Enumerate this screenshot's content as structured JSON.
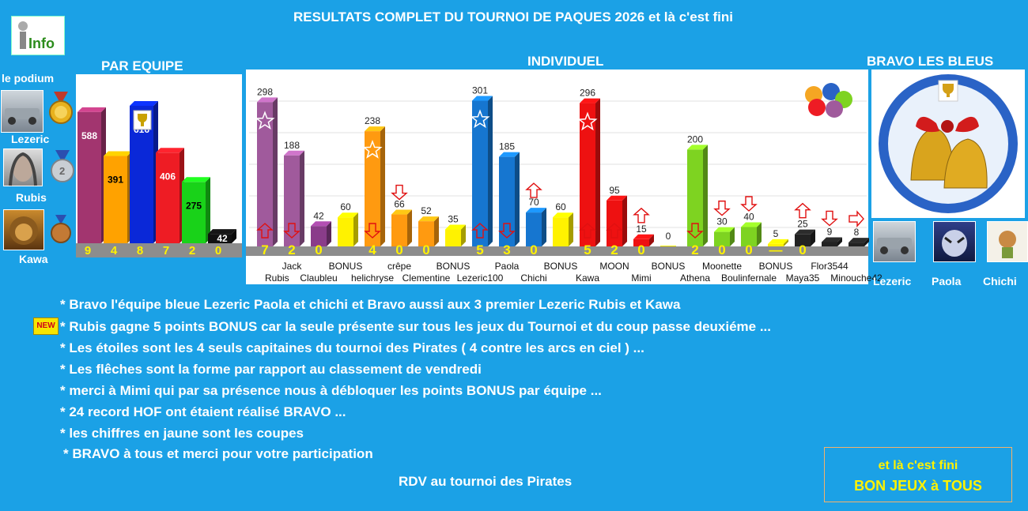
{
  "page": {
    "title": "RESULTATS COMPLET DU TOURNOI DE PAQUES 2026 et là c'est fini",
    "info_label": "Info",
    "sections": {
      "team": "PAR EQUIPE",
      "individual": "INDIVIDUEL",
      "winners": "BRAVO LES BLEUS"
    },
    "podium_label": "le podium",
    "podium": [
      {
        "name": "Lezeric",
        "medal": "gold-medal"
      },
      {
        "name": "Rubis",
        "medal": "silver-medal"
      },
      {
        "name": "Kawa",
        "medal": "bronze-medal"
      }
    ],
    "winners": [
      "Lezeric",
      "Paola",
      "Chichi"
    ],
    "new_badge": "NEW",
    "notes": [
      "* Bravo l'équipe bleue Lezeric Paola et chichi et Bravo aussi aux 3 premier Lezeric Rubis et Kawa",
      "* Rubis gagne 5 points BONUS car la seule présente sur tous les jeux du Tournoi et du coup passe deuxiéme ...",
      "* Les étoiles sont les 4 seuls capitaines du tournoi des Pirates ( 4 contre les arcs en ciel ) ...",
      "* Les flêches sont la forme par rapport au classement de vendredi",
      "* merci à Mimi qui par sa présence nous à débloquer les points BONUS par équipe ...",
      "* 24 record HOF ont étaient réalisé BRAVO ...",
      "* les chiffres en jaune sont les coupes",
      "* BRAVO à tous et merci pour votre participation"
    ],
    "rdv": "RDV au tournoi des Pirates",
    "final_box": {
      "line1": "et là c'est fini",
      "line2": "BON JEUX à TOUS"
    }
  },
  "chart_data": [
    {
      "type": "bar",
      "title": "PAR EQUIPE",
      "categories": [
        "",
        "",
        "",
        "",
        "",
        ""
      ],
      "values": [
        588,
        391,
        616,
        406,
        275,
        42
      ],
      "cups": [
        9,
        4,
        8,
        7,
        2,
        0
      ],
      "colors": [
        "#a2356f",
        "#ffa200",
        "#0a28d8",
        "#ee1c24",
        "#19d219",
        "#111111"
      ],
      "trophy_on": 2
    },
    {
      "type": "bar",
      "title": "INDIVIDUEL",
      "bars": [
        {
          "label": "Rubis",
          "value": 298,
          "cups": "7",
          "color": "#a05a9c",
          "star": true,
          "arrow": "up"
        },
        {
          "label": "Jack",
          "value": 188,
          "cups": "2",
          "color": "#a05a9c",
          "arrow": "down"
        },
        {
          "label": "Claubleu",
          "value": 42,
          "cups": "0",
          "color": "#8a3c8a"
        },
        {
          "label": "BONUS",
          "value": 60,
          "color": "#fff200"
        },
        {
          "label": "helichryse",
          "value": 238,
          "cups": "4",
          "color": "#ff9a10",
          "star": true,
          "arrow": "down"
        },
        {
          "label": "crêpe",
          "value": 66,
          "cups": "0",
          "color": "#ff9a10",
          "arrow": "down"
        },
        {
          "label": "Clementine",
          "value": 52,
          "cups": "0",
          "color": "#ff9a10"
        },
        {
          "label": "BONUS",
          "value": 35,
          "color": "#fff200"
        },
        {
          "label": "Lezeric100",
          "value": 301,
          "cups": "5",
          "color": "#1676d0",
          "star": true,
          "arrow": "up"
        },
        {
          "label": "Paola",
          "value": 185,
          "cups": "3",
          "color": "#1676d0",
          "arrow": "down"
        },
        {
          "label": "Chichi",
          "value": 70,
          "cups": "0",
          "color": "#1676d0",
          "arrow": "up"
        },
        {
          "label": "BONUS",
          "value": 60,
          "color": "#fff200"
        },
        {
          "label": "Kawa",
          "value": 296,
          "cups": "5",
          "color": "#ee1111",
          "star": true,
          "arrow": "up"
        },
        {
          "label": "MOON",
          "value": 95,
          "cups": "2",
          "color": "#ee1111",
          "arrow": "up"
        },
        {
          "label": "Mimi",
          "value": 15,
          "cups": "0",
          "color": "#ee1111",
          "arrow": "up"
        },
        {
          "label": "BONUS",
          "value": 0,
          "color": "#fff200"
        },
        {
          "label": "Athena",
          "value": 200,
          "cups": "2",
          "color": "#7ed321",
          "arrow": "down"
        },
        {
          "label": "Moonette",
          "value": 30,
          "cups": "0",
          "color": "#7ed321",
          "arrow": "down"
        },
        {
          "label": "Boulinfernale",
          "value": 40,
          "cups": "0",
          "color": "#7ed321",
          "arrow": "down"
        },
        {
          "label": "BONUS",
          "value": 5,
          "cups": "—",
          "color": "#fff200"
        },
        {
          "label": "Maya35",
          "value": 25,
          "cups": "0",
          "color": "#222222",
          "arrow": "up"
        },
        {
          "label": "Flor3544",
          "value": 9,
          "color": "#222222",
          "arrow": "down"
        },
        {
          "label": "Minouche42",
          "value": 8,
          "color": "#222222",
          "arrow": "right"
        }
      ],
      "ylim": [
        0,
        310
      ]
    }
  ]
}
